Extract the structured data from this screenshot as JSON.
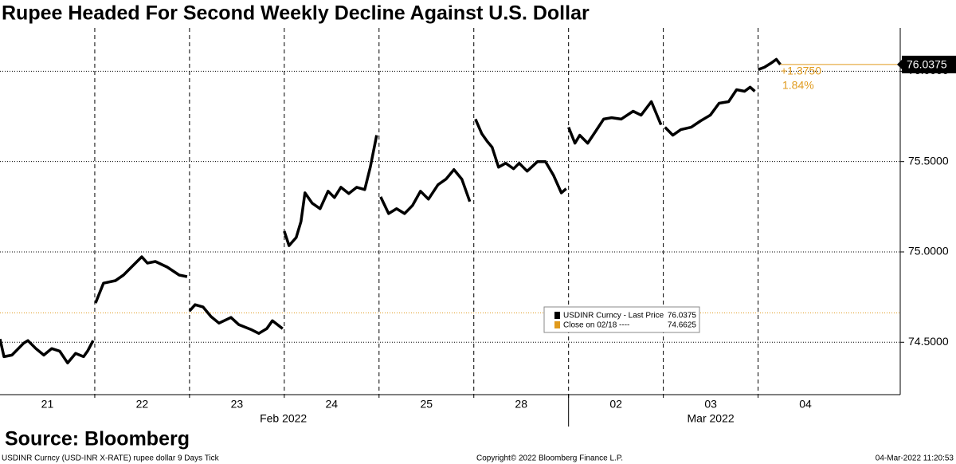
{
  "chart_data": {
    "type": "line",
    "title": "Rupee Headed For Second Weekly Decline Against U.S. Dollar",
    "source": "Source: Bloomberg",
    "footer_left": "USDINR Curncy (USD-INR X-RATE) rupee dollar 9 Days  Tick",
    "footer_center": "Copyright© 2022 Bloomberg Finance L.P.",
    "footer_right": "04-Mar-2022 11:20:53",
    "change_label": "+1.3750",
    "change_pct_label": "1.84%",
    "x": [
      0,
      0.042,
      0.126,
      0.252,
      0.294,
      0.378,
      0.462,
      0.546,
      0.63,
      0.714,
      0.798,
      0.882,
      0.924,
      0.983,
      null,
      1.008,
      1.092,
      1.218,
      1.303,
      1.387,
      1.496,
      1.555,
      1.639,
      1.765,
      1.891,
      1.975,
      null,
      2.0,
      2.059,
      2.143,
      2.227,
      2.311,
      2.437,
      2.521,
      2.647,
      2.731,
      2.815,
      2.874,
      2.983,
      null,
      3.0,
      3.05,
      3.126,
      3.176,
      3.218,
      3.294,
      3.378,
      3.462,
      3.529,
      3.597,
      3.681,
      3.765,
      3.849,
      3.908,
      3.975,
      null,
      4.017,
      4.101,
      4.185,
      4.269,
      4.353,
      4.437,
      4.521,
      4.622,
      4.706,
      4.79,
      4.874,
      4.958,
      null,
      5.017,
      5.084,
      5.143,
      5.193,
      5.261,
      5.336,
      5.42,
      5.479,
      5.563,
      5.672,
      5.756,
      5.84,
      5.924,
      5.975,
      null,
      6.0,
      6.067,
      6.118,
      6.202,
      6.286,
      6.37,
      6.454,
      6.555,
      6.681,
      6.765,
      6.874,
      6.975,
      null,
      7.017,
      7.101,
      7.185,
      7.294,
      7.395,
      7.496,
      7.588,
      7.689,
      7.773,
      7.857,
      7.916,
      7.966,
      null,
      8.0,
      8.067,
      8.134,
      8.193,
      8.235
    ],
    "series": [
      {
        "name": "USDINR Curncy - Last Price",
        "color": "#000000",
        "values": [
          74.518,
          74.42,
          74.429,
          74.496,
          74.509,
          74.465,
          74.429,
          74.465,
          74.451,
          74.385,
          74.438,
          74.42,
          74.451,
          74.509,
          null,
          74.717,
          74.827,
          74.841,
          74.872,
          74.916,
          74.973,
          74.938,
          74.947,
          74.916,
          74.872,
          74.863,
          null,
          74.673,
          74.708,
          74.695,
          74.642,
          74.606,
          74.637,
          74.597,
          74.571,
          74.549,
          74.575,
          74.619,
          74.575,
          null,
          75.115,
          75.035,
          75.08,
          75.168,
          75.327,
          75.27,
          75.239,
          75.336,
          75.301,
          75.358,
          75.323,
          75.358,
          75.345,
          75.469,
          75.646,
          null,
          75.305,
          75.212,
          75.239,
          75.212,
          75.257,
          75.336,
          75.292,
          75.372,
          75.403,
          75.456,
          75.403,
          75.279,
          null,
          75.735,
          75.655,
          75.611,
          75.58,
          75.469,
          75.491,
          75.46,
          75.491,
          75.447,
          75.5,
          75.5,
          75.425,
          75.327,
          75.35,
          null,
          75.69,
          75.602,
          75.646,
          75.602,
          75.668,
          75.735,
          75.743,
          75.735,
          75.779,
          75.757,
          75.832,
          75.704,
          null,
          75.69,
          75.646,
          75.677,
          75.69,
          75.726,
          75.757,
          75.823,
          75.832,
          75.898,
          75.889,
          75.912,
          75.889,
          null,
          76.009,
          76.022,
          76.044,
          76.066,
          76.0375
        ]
      }
    ],
    "reference": {
      "name": "Close on 02/18 ----",
      "value": 74.6625,
      "color": "#e09a1c"
    },
    "xlim": [
      0,
      9.5
    ],
    "ylim": [
      74.21,
      76.24
    ],
    "xticks": [
      {
        "value": 0.5,
        "label": "21"
      },
      {
        "value": 1.5,
        "label": "22"
      },
      {
        "value": 2.5,
        "label": "23"
      },
      {
        "value": 3.5,
        "label": "24"
      },
      {
        "value": 4.5,
        "label": "25"
      },
      {
        "value": 5.5,
        "label": "28"
      },
      {
        "value": 6.5,
        "label": "02"
      },
      {
        "value": 7.5,
        "label": "03"
      },
      {
        "value": 8.5,
        "label": "04"
      }
    ],
    "month_labels": [
      {
        "value": 2.99,
        "label": "Feb 2022"
      },
      {
        "value": 7.5,
        "label": "Mar 2022"
      }
    ],
    "month_divider": 6,
    "yticks": [
      {
        "value": 74.5,
        "label": "74.5000"
      },
      {
        "value": 75,
        "label": "75.0000"
      },
      {
        "value": 75.5,
        "label": "75.5000"
      },
      {
        "value": 76,
        "label": "76.0000"
      }
    ],
    "grid": true
  }
}
